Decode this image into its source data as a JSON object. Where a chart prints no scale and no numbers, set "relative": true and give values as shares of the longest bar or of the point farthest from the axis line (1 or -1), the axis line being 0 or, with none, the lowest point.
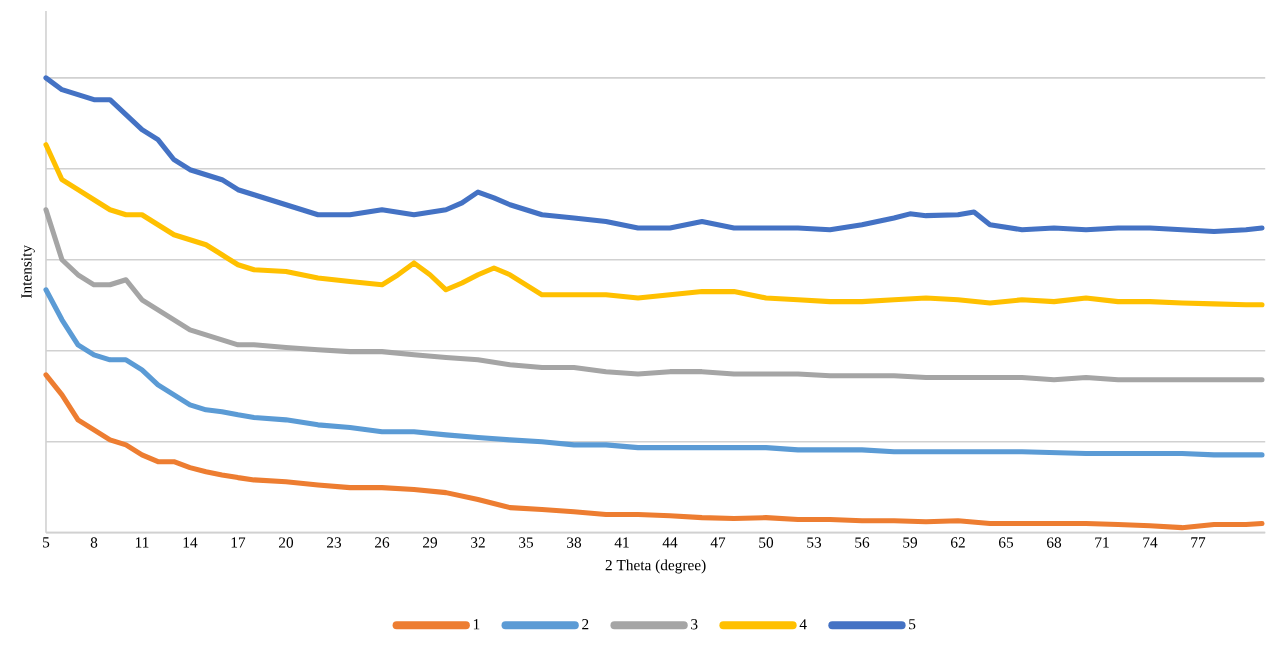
{
  "chart_data": {
    "type": "line",
    "xlabel": "2 Theta (degree)",
    "ylabel": "Intensity",
    "relative": true,
    "grid": "y",
    "legend": "bottom",
    "marker": "none",
    "line_style": "solid",
    "xlim": [
      5,
      81.2
    ],
    "xticks": [
      5,
      8,
      11,
      14,
      17,
      20,
      23,
      26,
      29,
      32,
      35,
      38,
      41,
      44,
      47,
      50,
      53,
      56,
      59,
      62,
      65,
      68,
      71,
      74,
      77
    ],
    "series": [
      {
        "name": "1",
        "color": "#ed7d31",
        "x": [
          5,
          6,
          7,
          8,
          9,
          10,
          11,
          12,
          13,
          14,
          15,
          16,
          17,
          18,
          20,
          22,
          24,
          26,
          28,
          30,
          32,
          34,
          36,
          38,
          40,
          42,
          44,
          46,
          48,
          50,
          52,
          54,
          56,
          58,
          60,
          62,
          64,
          66,
          68,
          70,
          72,
          74,
          76,
          78,
          80,
          81
        ],
        "values": [
          0.347,
          0.303,
          0.248,
          0.226,
          0.204,
          0.193,
          0.171,
          0.156,
          0.156,
          0.143,
          0.134,
          0.127,
          0.121,
          0.116,
          0.112,
          0.105,
          0.099,
          0.099,
          0.095,
          0.088,
          0.073,
          0.055,
          0.051,
          0.046,
          0.04,
          0.04,
          0.037,
          0.033,
          0.031,
          0.033,
          0.029,
          0.029,
          0.026,
          0.026,
          0.024,
          0.026,
          0.02,
          0.02,
          0.02,
          0.02,
          0.018,
          0.015,
          0.011,
          0.018,
          0.018,
          0.02
        ]
      },
      {
        "name": "2",
        "color": "#5b9bd5",
        "x": [
          5,
          6,
          7,
          8,
          9,
          10,
          11,
          12,
          13,
          14,
          15,
          16,
          17,
          18,
          20,
          22,
          24,
          26,
          28,
          30,
          32,
          34,
          36,
          38,
          40,
          42,
          44,
          46,
          48,
          50,
          52,
          54,
          56,
          58,
          60,
          62,
          64,
          66,
          68,
          70,
          72,
          74,
          76,
          78,
          80,
          81
        ],
        "values": [
          0.534,
          0.468,
          0.413,
          0.391,
          0.38,
          0.38,
          0.358,
          0.325,
          0.303,
          0.281,
          0.27,
          0.266,
          0.259,
          0.253,
          0.248,
          0.237,
          0.231,
          0.222,
          0.222,
          0.215,
          0.209,
          0.204,
          0.2,
          0.193,
          0.193,
          0.187,
          0.187,
          0.187,
          0.187,
          0.187,
          0.182,
          0.182,
          0.182,
          0.178,
          0.178,
          0.178,
          0.178,
          0.178,
          0.176,
          0.174,
          0.174,
          0.174,
          0.174,
          0.171,
          0.171,
          0.171
        ]
      },
      {
        "name": "3",
        "color": "#a5a5a5",
        "x": [
          5,
          6,
          7,
          8,
          9,
          10,
          11,
          12,
          13,
          14,
          15,
          16,
          17,
          18,
          20,
          22,
          24,
          26,
          28,
          30,
          32,
          34,
          36,
          38,
          40,
          42,
          44,
          46,
          48,
          50,
          52,
          54,
          56,
          58,
          60,
          62,
          64,
          66,
          68,
          70,
          72,
          74,
          76,
          78,
          80,
          81
        ],
        "values": [
          0.71,
          0.6,
          0.567,
          0.545,
          0.545,
          0.556,
          0.512,
          0.49,
          0.468,
          0.446,
          0.435,
          0.424,
          0.413,
          0.413,
          0.407,
          0.402,
          0.398,
          0.398,
          0.391,
          0.385,
          0.38,
          0.369,
          0.363,
          0.363,
          0.354,
          0.349,
          0.354,
          0.354,
          0.349,
          0.349,
          0.349,
          0.345,
          0.345,
          0.345,
          0.341,
          0.341,
          0.341,
          0.341,
          0.336,
          0.341,
          0.336,
          0.336,
          0.336,
          0.336,
          0.336,
          0.336
        ]
      },
      {
        "name": "4",
        "color": "#ffc000",
        "x": [
          5,
          6,
          7,
          8,
          9,
          10,
          11,
          12,
          13,
          14,
          15,
          16,
          17,
          18,
          20,
          22,
          24,
          26,
          27,
          28,
          29,
          30,
          31,
          32,
          33,
          34,
          36,
          38,
          40,
          42,
          44,
          46,
          48,
          50,
          52,
          54,
          56,
          58,
          60,
          62,
          64,
          66,
          68,
          70,
          72,
          74,
          76,
          78,
          80,
          81
        ],
        "values": [
          0.853,
          0.776,
          0.754,
          0.732,
          0.71,
          0.699,
          0.699,
          0.677,
          0.655,
          0.644,
          0.633,
          0.611,
          0.589,
          0.578,
          0.574,
          0.56,
          0.552,
          0.545,
          0.567,
          0.593,
          0.567,
          0.534,
          0.549,
          0.567,
          0.582,
          0.567,
          0.523,
          0.523,
          0.523,
          0.516,
          0.523,
          0.53,
          0.53,
          0.516,
          0.512,
          0.508,
          0.508,
          0.512,
          0.516,
          0.512,
          0.505,
          0.512,
          0.508,
          0.516,
          0.508,
          0.508,
          0.505,
          0.503,
          0.501,
          0.501
        ]
      },
      {
        "name": "5",
        "color": "#4472c4",
        "x": [
          5,
          6,
          7,
          8,
          9,
          10,
          11,
          12,
          13,
          14,
          15,
          16,
          17,
          18,
          20,
          22,
          24,
          26,
          28,
          30,
          31,
          32,
          33,
          34,
          36,
          38,
          40,
          42,
          44,
          46,
          48,
          50,
          52,
          54,
          56,
          58,
          59,
          60,
          62,
          63,
          64,
          66,
          68,
          70,
          72,
          74,
          76,
          78,
          80,
          81
        ],
        "values": [
          1.0,
          0.974,
          0.963,
          0.952,
          0.952,
          0.919,
          0.886,
          0.864,
          0.82,
          0.798,
          0.787,
          0.776,
          0.754,
          0.743,
          0.721,
          0.699,
          0.699,
          0.71,
          0.699,
          0.71,
          0.725,
          0.749,
          0.736,
          0.721,
          0.699,
          0.692,
          0.684,
          0.67,
          0.67,
          0.684,
          0.67,
          0.67,
          0.67,
          0.666,
          0.677,
          0.692,
          0.701,
          0.697,
          0.699,
          0.705,
          0.677,
          0.666,
          0.67,
          0.666,
          0.67,
          0.67,
          0.666,
          0.662,
          0.666,
          0.67
        ]
      }
    ]
  }
}
